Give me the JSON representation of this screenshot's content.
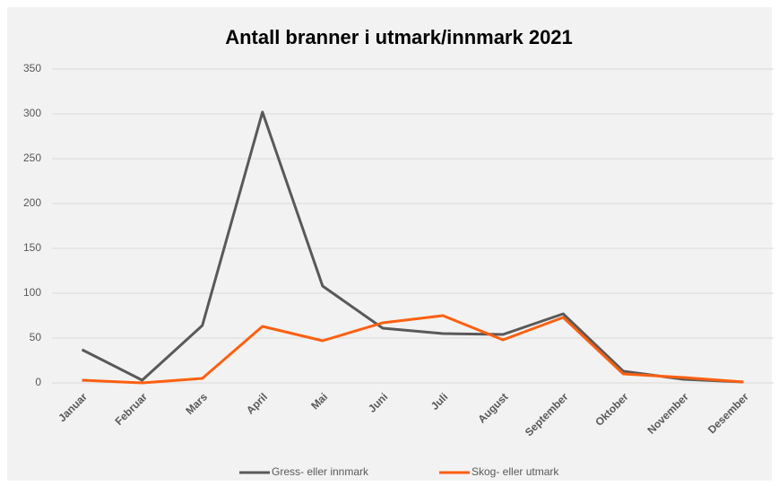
{
  "chart_data": {
    "type": "line",
    "title": "Antall branner i utmark/innmark 2021",
    "categories": [
      "Januar",
      "Februar",
      "Mars",
      "April",
      "Mai",
      "Juni",
      "Juli",
      "August",
      "September",
      "Oktober",
      "November",
      "Desember"
    ],
    "series": [
      {
        "name": "Gress- eller innmark",
        "color": "#595959",
        "values": [
          37,
          3,
          64,
          302,
          108,
          61,
          55,
          54,
          77,
          13,
          4,
          1
        ]
      },
      {
        "name": "Skog- eller utmark",
        "color": "#ff5f0f",
        "values": [
          3,
          0,
          5,
          63,
          47,
          67,
          75,
          48,
          73,
          10,
          6,
          1
        ]
      }
    ],
    "ylim": [
      0,
      350
    ],
    "yticks": [
      0,
      50,
      100,
      150,
      200,
      250,
      300,
      350
    ],
    "grid": true,
    "legend": "bottom"
  }
}
